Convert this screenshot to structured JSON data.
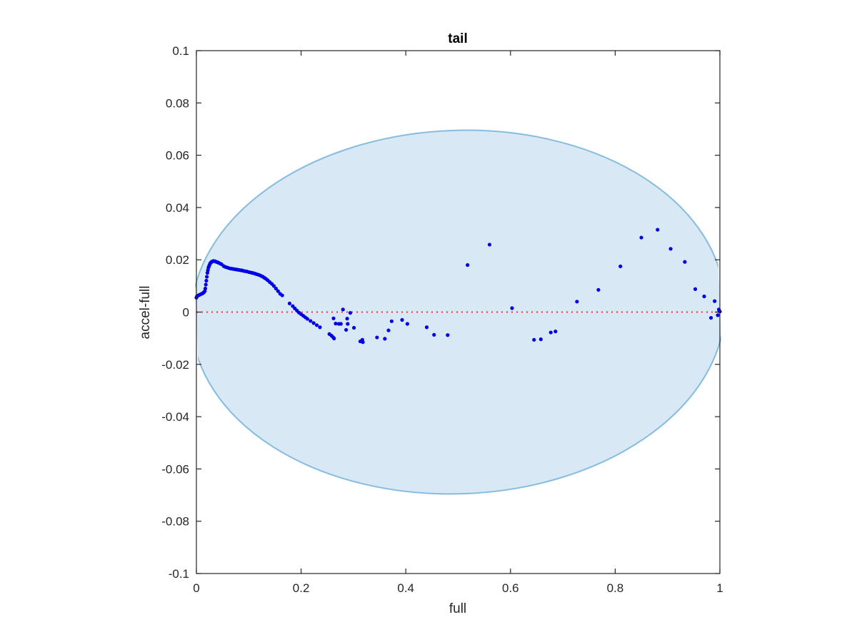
{
  "chart_data": {
    "type": "scatter",
    "title": "tail",
    "xlabel": "full",
    "ylabel": "accel-full",
    "xlim": [
      0,
      1
    ],
    "ylim": [
      -0.1,
      0.1
    ],
    "xticks": [
      0,
      0.2,
      0.4,
      0.6,
      0.8,
      1
    ],
    "xtick_labels": [
      "0",
      "0.2",
      "0.4",
      "0.6",
      "0.8",
      "1"
    ],
    "yticks": [
      -0.1,
      -0.08,
      -0.06,
      -0.04,
      -0.02,
      0,
      0.02,
      0.04,
      0.06,
      0.08,
      0.1
    ],
    "ytick_labels": [
      "-0.1",
      "-0.08",
      "-0.06",
      "-0.04",
      "-0.02",
      "0",
      "0.02",
      "0.04",
      "0.06",
      "0.08",
      "0.1"
    ],
    "grid": false,
    "colors": {
      "points": "#0000e6",
      "region_fill": "#d8e8f4",
      "region_edge": "#85bce0",
      "zero_line": "#ff3030",
      "axis": "#262626"
    },
    "reference_line": {
      "y": 0,
      "style": "dotted"
    },
    "confidence_region": {
      "shape": "ellipse",
      "center": [
        0.5,
        0
      ],
      "semi_axis_x": 0.5,
      "semi_axis_y": 0.0695,
      "tilt": "slight"
    },
    "points": [
      [
        0.0,
        0.0055
      ],
      [
        0.001,
        0.006
      ],
      [
        0.002,
        0.0062
      ],
      [
        0.004,
        0.0064
      ],
      [
        0.006,
        0.0066
      ],
      [
        0.008,
        0.0068
      ],
      [
        0.01,
        0.007
      ],
      [
        0.012,
        0.0072
      ],
      [
        0.014,
        0.0075
      ],
      [
        0.016,
        0.008
      ],
      [
        0.017,
        0.009
      ],
      [
        0.018,
        0.0105
      ],
      [
        0.019,
        0.012
      ],
      [
        0.02,
        0.0135
      ],
      [
        0.021,
        0.015
      ],
      [
        0.022,
        0.016
      ],
      [
        0.023,
        0.017
      ],
      [
        0.024,
        0.0175
      ],
      [
        0.025,
        0.018
      ],
      [
        0.026,
        0.0185
      ],
      [
        0.027,
        0.0188
      ],
      [
        0.028,
        0.019
      ],
      [
        0.029,
        0.0192
      ],
      [
        0.03,
        0.0193
      ],
      [
        0.031,
        0.0194
      ],
      [
        0.032,
        0.0195
      ],
      [
        0.034,
        0.0195
      ],
      [
        0.036,
        0.0194
      ],
      [
        0.038,
        0.0192
      ],
      [
        0.04,
        0.0191
      ],
      [
        0.042,
        0.0189
      ],
      [
        0.045,
        0.0186
      ],
      [
        0.048,
        0.0183
      ],
      [
        0.052,
        0.0176
      ],
      [
        0.055,
        0.0173
      ],
      [
        0.058,
        0.0171
      ],
      [
        0.061,
        0.0169
      ],
      [
        0.064,
        0.0167
      ],
      [
        0.067,
        0.0166
      ],
      [
        0.07,
        0.0165
      ],
      [
        0.073,
        0.0164
      ],
      [
        0.076,
        0.0163
      ],
      [
        0.079,
        0.0162
      ],
      [
        0.082,
        0.0161
      ],
      [
        0.085,
        0.016
      ],
      [
        0.088,
        0.0159
      ],
      [
        0.091,
        0.0157
      ],
      [
        0.094,
        0.0156
      ],
      [
        0.097,
        0.0155
      ],
      [
        0.1,
        0.0153
      ],
      [
        0.103,
        0.0152
      ],
      [
        0.106,
        0.015
      ],
      [
        0.109,
        0.0149
      ],
      [
        0.112,
        0.0147
      ],
      [
        0.115,
        0.0145
      ],
      [
        0.118,
        0.0143
      ],
      [
        0.121,
        0.0141
      ],
      [
        0.124,
        0.0138
      ],
      [
        0.127,
        0.0135
      ],
      [
        0.13,
        0.0131
      ],
      [
        0.133,
        0.0127
      ],
      [
        0.136,
        0.0122
      ],
      [
        0.14,
        0.0115
      ],
      [
        0.144,
        0.0108
      ],
      [
        0.148,
        0.01
      ],
      [
        0.152,
        0.009
      ],
      [
        0.156,
        0.008
      ],
      [
        0.16,
        0.007
      ],
      [
        0.164,
        0.0064
      ],
      [
        0.178,
        0.0033
      ],
      [
        0.184,
        0.0023
      ],
      [
        0.188,
        0.0014
      ],
      [
        0.192,
        0.0006
      ],
      [
        0.196,
        -0.0002
      ],
      [
        0.2,
        -0.0008
      ],
      [
        0.204,
        -0.0014
      ],
      [
        0.208,
        -0.002
      ],
      [
        0.212,
        -0.0026
      ],
      [
        0.218,
        -0.0034
      ],
      [
        0.224,
        -0.0042
      ],
      [
        0.23,
        -0.005
      ],
      [
        0.236,
        -0.0058
      ],
      [
        0.254,
        -0.0084
      ],
      [
        0.258,
        -0.009
      ],
      [
        0.261,
        -0.0096
      ],
      [
        0.263,
        -0.0101
      ],
      [
        0.262,
        -0.0024
      ],
      [
        0.266,
        -0.0044
      ],
      [
        0.272,
        -0.0045
      ],
      [
        0.276,
        -0.0045
      ],
      [
        0.28,
        0.001
      ],
      [
        0.286,
        -0.0068
      ],
      [
        0.288,
        -0.0025
      ],
      [
        0.289,
        -0.0045
      ],
      [
        0.294,
        -0.0003
      ],
      [
        0.301,
        -0.006
      ],
      [
        0.313,
        -0.0112
      ],
      [
        0.317,
        -0.0106
      ],
      [
        0.318,
        -0.0115
      ],
      [
        0.345,
        -0.0097
      ],
      [
        0.36,
        -0.0102
      ],
      [
        0.367,
        -0.007
      ],
      [
        0.373,
        -0.0035
      ],
      [
        0.393,
        -0.003
      ],
      [
        0.403,
        -0.0045
      ],
      [
        0.44,
        -0.0058
      ],
      [
        0.454,
        -0.0087
      ],
      [
        0.48,
        -0.0088
      ],
      [
        0.518,
        0.018
      ],
      [
        0.56,
        0.0258
      ],
      [
        0.603,
        0.0015
      ],
      [
        0.645,
        -0.0106
      ],
      [
        0.658,
        -0.0104
      ],
      [
        0.677,
        -0.0078
      ],
      [
        0.686,
        -0.0074
      ],
      [
        0.727,
        0.004
      ],
      [
        0.768,
        0.0085
      ],
      [
        0.81,
        0.0175
      ],
      [
        0.85,
        0.0285
      ],
      [
        0.881,
        0.0315
      ],
      [
        0.906,
        0.0242
      ],
      [
        0.933,
        0.0192
      ],
      [
        0.953,
        0.0088
      ],
      [
        0.97,
        0.006
      ],
      [
        0.983,
        -0.0022
      ],
      [
        0.99,
        0.0042
      ],
      [
        0.996,
        -0.0012
      ],
      [
        0.998,
        0.001
      ],
      [
        0.999,
        0.0005
      ],
      [
        1.0,
        0.0002
      ]
    ]
  }
}
